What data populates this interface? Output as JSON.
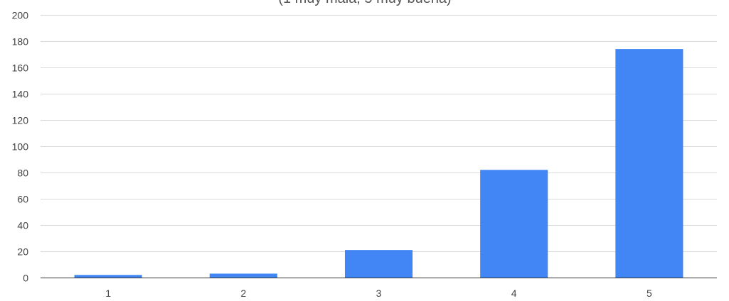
{
  "chart_data": {
    "type": "bar",
    "subtitle": "(1 muy mala, 5 muy buena)",
    "categories": [
      "1",
      "2",
      "3",
      "4",
      "5"
    ],
    "values": [
      2,
      3,
      21,
      82,
      174
    ],
    "ylim": [
      0,
      200
    ],
    "yticks": [
      0,
      20,
      40,
      60,
      80,
      100,
      120,
      140,
      160,
      180,
      200
    ],
    "grid": true,
    "legend": "none",
    "bar_color": "#4285f4",
    "xlabel": "",
    "ylabel": ""
  }
}
